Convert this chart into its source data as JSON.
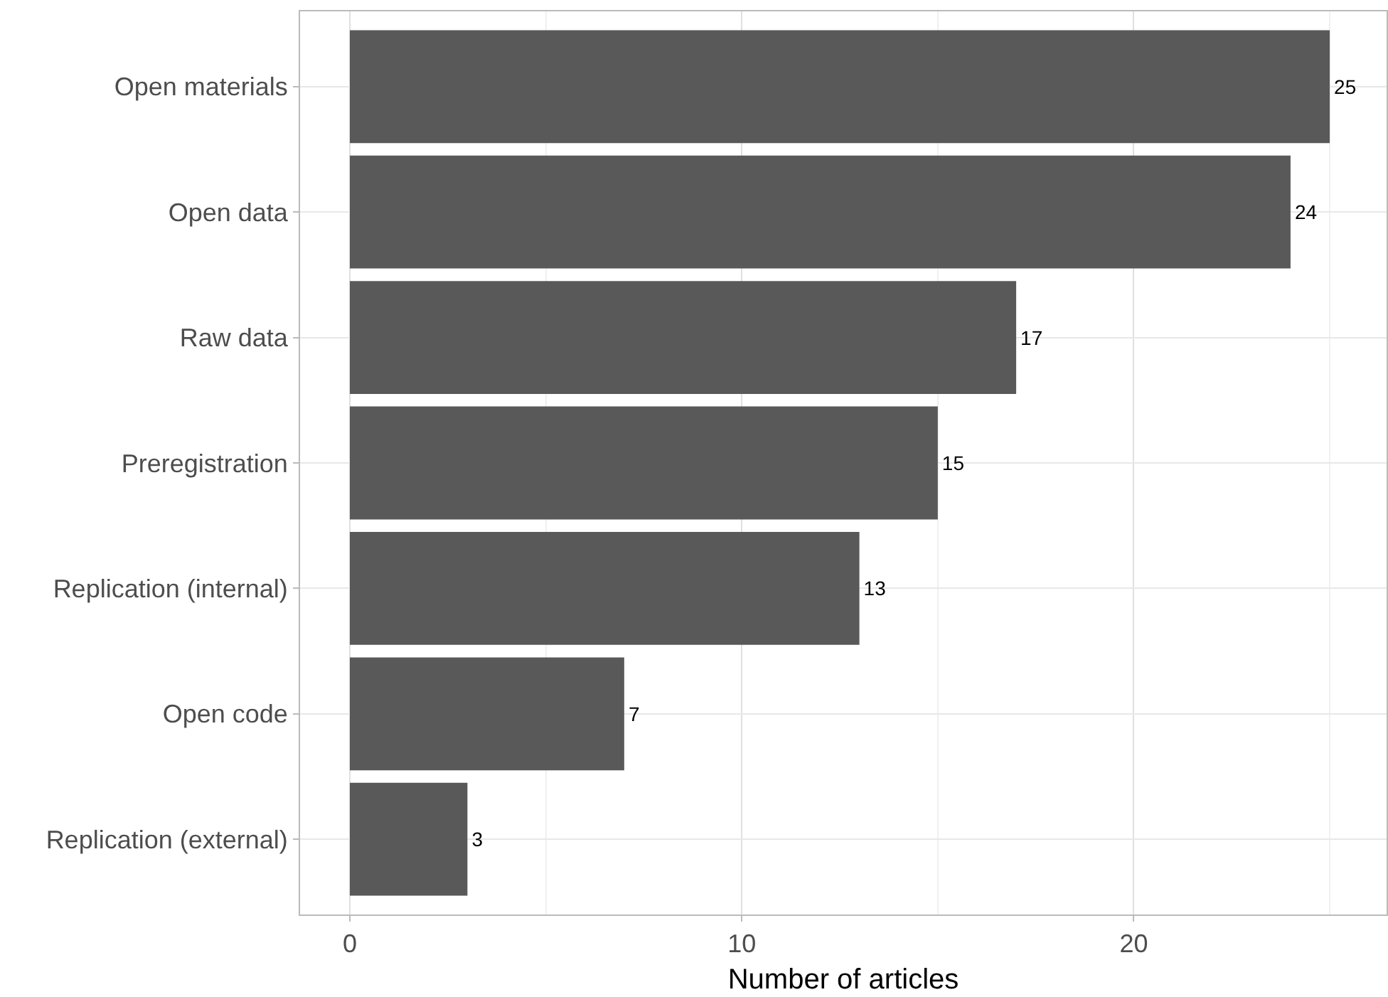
{
  "chart_data": {
    "type": "bar",
    "orientation": "horizontal",
    "xlabel": "Number of articles",
    "categories": [
      "Open materials",
      "Open data",
      "Raw data",
      "Preregistration",
      "Replication (internal)",
      "Open code",
      "Replication (external)"
    ],
    "values": [
      25,
      24,
      17,
      15,
      13,
      7,
      3
    ],
    "color": "#595959",
    "xlim": [
      -1.27,
      26.45
    ],
    "xticks": [
      0,
      10,
      20
    ],
    "grid": true,
    "data_labels": true
  }
}
